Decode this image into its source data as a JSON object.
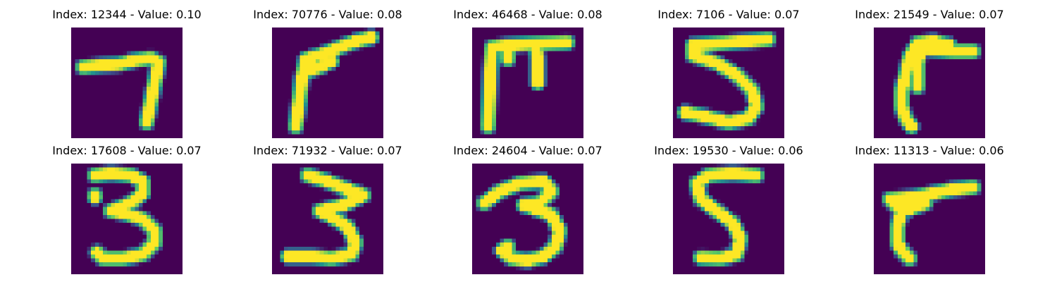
{
  "colors": {
    "background": "#440154",
    "low": "#3b528b",
    "mid": "#21918c",
    "high": "#5ec962",
    "peak": "#fde725"
  },
  "panels": [
    {
      "title": "Index: 12344 - Value: 0.10",
      "digit": "7",
      "strokes": [
        [
          [
            3,
            10
          ],
          [
            8,
            9.5
          ],
          [
            12,
            9.3
          ],
          [
            16,
            8.3
          ],
          [
            20,
            7.8
          ],
          [
            22,
            8.8
          ],
          [
            21,
            14
          ],
          [
            20,
            19
          ],
          [
            19,
            24
          ]
        ]
      ]
    },
    {
      "title": "Index: 70776 - Value: 0.08",
      "digit": "7",
      "strokes": [
        [
          [
            6,
            25
          ],
          [
            6.8,
            19
          ],
          [
            7.5,
            13
          ],
          [
            8.5,
            8
          ],
          [
            12,
            7
          ],
          [
            17,
            5
          ],
          [
            21,
            3.5
          ],
          [
            25,
            2.5
          ]
        ],
        [
          [
            8.5,
            8
          ],
          [
            9,
            11
          ],
          [
            12,
            10
          ],
          [
            15,
            8.5
          ]
        ]
      ]
    },
    {
      "title": "Index: 46468 - Value: 0.08",
      "digit": "7",
      "strokes": [
        [
          [
            4,
            25
          ],
          [
            4.3,
            18
          ],
          [
            4.6,
            11
          ],
          [
            5,
            5
          ],
          [
            9,
            4.5
          ],
          [
            14,
            4.2
          ],
          [
            19,
            4
          ],
          [
            24,
            3.8
          ]
        ],
        [
          [
            16,
            4.5
          ],
          [
            16.5,
            8
          ],
          [
            16.5,
            14
          ]
        ],
        [
          [
            9,
            4.5
          ],
          [
            9,
            8
          ]
        ]
      ]
    },
    {
      "title": "Index: 7106 - Value: 0.07",
      "digit": "5",
      "strokes": [
        [
          [
            24,
            3
          ],
          [
            18,
            3.5
          ],
          [
            12,
            4
          ],
          [
            5,
            4.5
          ],
          [
            5,
            7
          ],
          [
            11,
            9
          ],
          [
            16,
            12
          ],
          [
            20,
            16
          ],
          [
            21,
            20
          ],
          [
            19,
            23
          ],
          [
            14,
            24
          ],
          [
            8,
            22.5
          ],
          [
            3,
            21.5
          ]
        ]
      ]
    },
    {
      "title": "Index: 21549 - Value: 0.07",
      "digit": "7",
      "strokes": [
        [
          [
            25,
            6
          ],
          [
            20,
            6
          ],
          [
            14,
            5.5
          ],
          [
            11,
            4
          ],
          [
            9,
            7.5
          ],
          [
            8,
            12
          ],
          [
            7,
            16
          ],
          [
            7,
            20
          ],
          [
            8,
            23
          ],
          [
            9.5,
            25
          ]
        ],
        [
          [
            12,
            5
          ],
          [
            11,
            9
          ],
          [
            11,
            15
          ]
        ],
        [
          [
            11,
            4
          ],
          [
            15,
            3.5
          ],
          [
            19,
            4.5
          ]
        ]
      ]
    },
    {
      "title": "Index: 17608 - Value: 0.07",
      "digit": "3",
      "strokes": [
        [
          [
            6,
            3
          ],
          [
            10,
            2.5
          ],
          [
            15,
            3
          ],
          [
            18,
            4.5
          ],
          [
            18,
            7.5
          ],
          [
            15,
            10
          ],
          [
            10,
            12
          ],
          [
            13,
            12.5
          ],
          [
            18,
            14
          ],
          [
            21,
            17
          ],
          [
            21,
            20
          ],
          [
            18,
            23
          ],
          [
            13,
            24
          ],
          [
            8,
            24
          ],
          [
            6.5,
            22.5
          ]
        ],
        [
          [
            6,
            8
          ],
          [
            6,
            8.5
          ]
        ]
      ]
    },
    {
      "title": "Index: 71932 - Value: 0.07",
      "digit": "3",
      "strokes": [
        [
          [
            9,
            3
          ],
          [
            14,
            4.5
          ],
          [
            19,
            6.5
          ],
          [
            23,
            8
          ],
          [
            18,
            10.5
          ],
          [
            12,
            12
          ],
          [
            15,
            13.5
          ],
          [
            19,
            16
          ],
          [
            21,
            20
          ],
          [
            20,
            23
          ],
          [
            15,
            24
          ],
          [
            10,
            23.5
          ],
          [
            4,
            23.5
          ]
        ]
      ]
    },
    {
      "title": "Index: 24604 - Value: 0.07",
      "digit": "3",
      "strokes": [
        [
          [
            3,
            10
          ],
          [
            7,
            7
          ],
          [
            12,
            5
          ],
          [
            18,
            4.5
          ],
          [
            20,
            7
          ],
          [
            17,
            10
          ],
          [
            13,
            10.5
          ],
          [
            16,
            11.5
          ],
          [
            20,
            13
          ],
          [
            22,
            17
          ],
          [
            21,
            21
          ],
          [
            18,
            23.5
          ],
          [
            14,
            24.5
          ],
          [
            10,
            24
          ],
          [
            7.5,
            22
          ],
          [
            9,
            21
          ]
        ]
      ]
    },
    {
      "title": "Index: 19530 - Value: 0.06",
      "digit": "5",
      "strokes": [
        [
          [
            21,
            3
          ],
          [
            15,
            2.5
          ],
          [
            9,
            3
          ],
          [
            6,
            5
          ],
          [
            7,
            9
          ],
          [
            11,
            12
          ],
          [
            15,
            15
          ],
          [
            17,
            19
          ],
          [
            16,
            23
          ],
          [
            12,
            24
          ],
          [
            7,
            23.8
          ]
        ]
      ]
    },
    {
      "title": "Index: 11313 - Value: 0.06",
      "digit": "7",
      "strokes": [
        [
          [
            25,
            6
          ],
          [
            20,
            6.5
          ],
          [
            15,
            7.5
          ],
          [
            10,
            8.5
          ],
          [
            4,
            9
          ],
          [
            7,
            12
          ],
          [
            6,
            16
          ],
          [
            6,
            20
          ],
          [
            7,
            22
          ],
          [
            9,
            24
          ]
        ],
        [
          [
            5,
            10
          ],
          [
            9,
            11.5
          ],
          [
            13,
            10
          ]
        ]
      ]
    }
  ]
}
